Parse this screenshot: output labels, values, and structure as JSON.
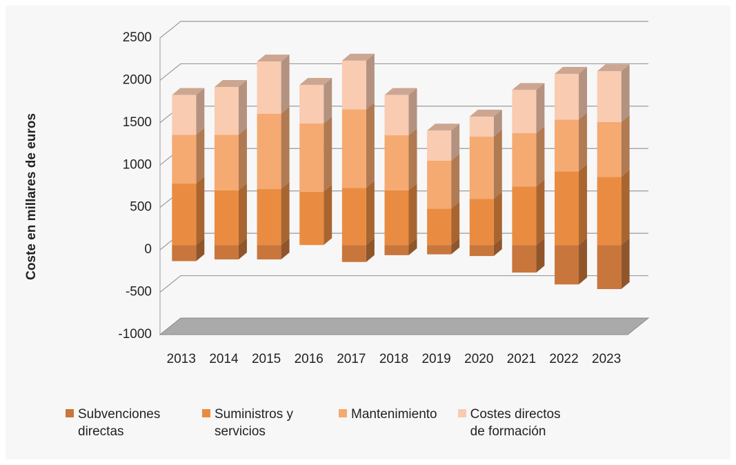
{
  "chart_data": {
    "type": "bar3d_stacked",
    "y_label": "Coste en millares de euros",
    "categories": [
      "2013",
      "2014",
      "2015",
      "2016",
      "2017",
      "2018",
      "2019",
      "2020",
      "2021",
      "2022",
      "2023"
    ],
    "series": [
      {
        "name": "Subvenciones directas",
        "color": "#c8763c",
        "values": [
          -190,
          -170,
          -170,
          0,
          -200,
          -120,
          -110,
          -130,
          -325,
          -465,
          -520
        ]
      },
      {
        "name": "Suministros y servicios",
        "color": "#e98c41",
        "values": [
          725,
          645,
          660,
          630,
          675,
          645,
          430,
          545,
          690,
          870,
          805
        ]
      },
      {
        "name": "Mantenimiento",
        "color": "#f5aa72",
        "values": [
          575,
          655,
          890,
          805,
          925,
          650,
          565,
          735,
          630,
          610,
          645
        ]
      },
      {
        "name": "Costes directos de formación",
        "color": "#f9cbb1",
        "values": [
          470,
          565,
          615,
          455,
          575,
          475,
          355,
          235,
          510,
          540,
          600
        ]
      }
    ],
    "ylim": [
      -1000,
      2500
    ],
    "yticks": [
      -1000,
      -500,
      0,
      500,
      1000,
      1500,
      2000,
      2500
    ],
    "grid": true
  }
}
